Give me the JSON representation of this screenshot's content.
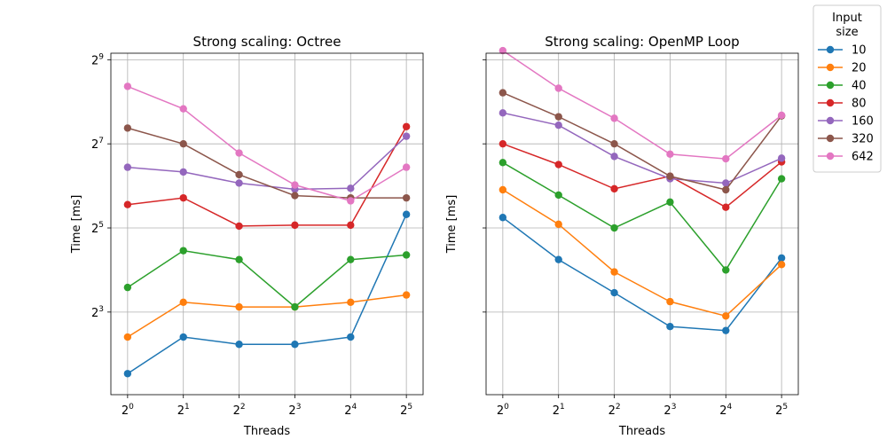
{
  "chart_data": [
    {
      "type": "line",
      "title": "Strong scaling: Octree",
      "xlabel": "Threads",
      "ylabel": "Time [ms]",
      "x": [
        1,
        2,
        4,
        8,
        16,
        32
      ],
      "x_tick_labels": [
        {
          "base": "2",
          "exp": "0"
        },
        {
          "base": "2",
          "exp": "1"
        },
        {
          "base": "2",
          "exp": "2"
        },
        {
          "base": "2",
          "exp": "3"
        },
        {
          "base": "2",
          "exp": "4"
        },
        {
          "base": "2",
          "exp": "5"
        }
      ],
      "x_scale": "log2",
      "y_scale": "log2",
      "ylim": [
        2.05,
        570
      ],
      "y_ticks": [
        8,
        32,
        128,
        512
      ],
      "y_tick_labels": [
        {
          "base": "2",
          "exp": "3"
        },
        {
          "base": "2",
          "exp": "5"
        },
        {
          "base": "2",
          "exp": "7"
        },
        {
          "base": "2",
          "exp": "9"
        }
      ],
      "grid": true,
      "series": [
        {
          "name": "10",
          "values": [
            2.9,
            5.3,
            4.7,
            4.7,
            5.3,
            40
          ]
        },
        {
          "name": "20",
          "values": [
            5.3,
            9.4,
            8.7,
            8.7,
            9.4,
            10.6
          ]
        },
        {
          "name": "40",
          "values": [
            12,
            22,
            19,
            8.7,
            19,
            20.5
          ]
        },
        {
          "name": "80",
          "values": [
            47,
            52.5,
            33,
            33.5,
            33.5,
            170
          ]
        },
        {
          "name": "160",
          "values": [
            87,
            80.5,
            67,
            60.5,
            61.5,
            145
          ]
        },
        {
          "name": "320",
          "values": [
            166,
            128,
            77,
            54.5,
            52.5,
            52.5
          ]
        },
        {
          "name": "642",
          "values": [
            330,
            228,
            110,
            65,
            50,
            87
          ]
        }
      ]
    },
    {
      "type": "line",
      "title": "Strong scaling: OpenMP Loop",
      "xlabel": "Threads",
      "ylabel": "Time [ms]",
      "x": [
        1,
        2,
        4,
        8,
        16,
        32
      ],
      "x_tick_labels": [
        {
          "base": "2",
          "exp": "0"
        },
        {
          "base": "2",
          "exp": "1"
        },
        {
          "base": "2",
          "exp": "2"
        },
        {
          "base": "2",
          "exp": "3"
        },
        {
          "base": "2",
          "exp": "4"
        },
        {
          "base": "2",
          "exp": "5"
        }
      ],
      "x_scale": "log2",
      "y_scale": "log2",
      "ylim": [
        2.05,
        570
      ],
      "y_ticks": [
        8,
        32,
        128,
        512
      ],
      "y_tick_labels": [],
      "grid": true,
      "series": [
        {
          "name": "10",
          "values": [
            38,
            19,
            11,
            6.3,
            5.9,
            19.5
          ]
        },
        {
          "name": "20",
          "values": [
            60,
            34,
            15.5,
            9.5,
            7.5,
            17.5
          ]
        },
        {
          "name": "40",
          "values": [
            94,
            55,
            32,
            49,
            16,
            72
          ]
        },
        {
          "name": "80",
          "values": [
            128,
            91,
            61,
            75,
            45,
            95
          ]
        },
        {
          "name": "160",
          "values": [
            213,
            174,
            104,
            72,
            67,
            101
          ]
        },
        {
          "name": "320",
          "values": [
            297,
            200,
            128,
            75,
            60,
            203
          ]
        },
        {
          "name": "642",
          "values": [
            595,
            320,
            195,
            108,
            100,
            205
          ]
        }
      ]
    }
  ],
  "legend": {
    "title": "Input\nsize",
    "title_lines": [
      "Input",
      "size"
    ],
    "placement": "outside-top-right",
    "entries": [
      {
        "label": "10",
        "color": "#1f77b4"
      },
      {
        "label": "20",
        "color": "#ff7f0e"
      },
      {
        "label": "40",
        "color": "#2ca02c"
      },
      {
        "label": "80",
        "color": "#d62728"
      },
      {
        "label": "160",
        "color": "#9467bd"
      },
      {
        "label": "320",
        "color": "#8c564b"
      },
      {
        "label": "642",
        "color": "#e377c2"
      }
    ]
  },
  "colors": [
    "#1f77b4",
    "#ff7f0e",
    "#2ca02c",
    "#d62728",
    "#9467bd",
    "#8c564b",
    "#e377c2"
  ]
}
